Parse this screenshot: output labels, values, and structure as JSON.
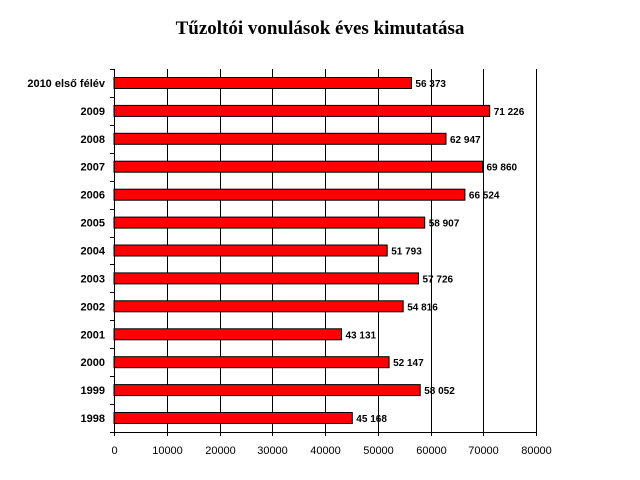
{
  "chart_data": {
    "type": "bar",
    "orientation": "horizontal",
    "title": "Tűzoltói vonulások éves kimutatása",
    "categories": [
      "2010 első félév",
      "2009",
      "2008",
      "2007",
      "2006",
      "2005",
      "2004",
      "2003",
      "2002",
      "2001",
      "2000",
      "1999",
      "1998"
    ],
    "values": [
      56373,
      71226,
      62947,
      69860,
      66524,
      58907,
      51793,
      57726,
      54816,
      43131,
      52147,
      58052,
      45168
    ],
    "value_labels": [
      "56 373",
      "71 226",
      "62 947",
      "69 860",
      "66 524",
      "58 907",
      "51 793",
      "57 726",
      "54 816",
      "43 131",
      "52 147",
      "58 052",
      "45 168"
    ],
    "xlim": [
      0,
      80000
    ],
    "xticks": [
      0,
      10000,
      20000,
      30000,
      40000,
      50000,
      60000,
      70000,
      80000
    ],
    "xtick_labels": [
      "0",
      "10000",
      "20000",
      "30000",
      "40000",
      "50000",
      "60000",
      "70000",
      "80000"
    ],
    "xlabel": "",
    "ylabel": "",
    "grid": "vertical",
    "legend": "none",
    "bar_color": "#ff0000",
    "bar_edge_color": "#000000"
  }
}
